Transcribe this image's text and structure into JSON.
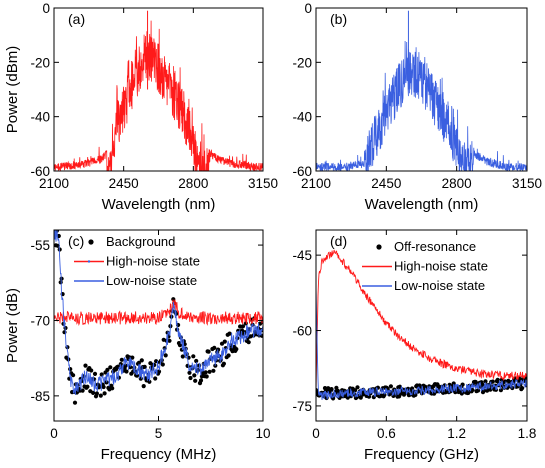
{
  "chart_data": [
    {
      "panel": "(a)",
      "type": "line",
      "xlabel": "Wavelength (nm)",
      "ylabel": "Power (dBm)",
      "xlim": [
        2100,
        3150
      ],
      "ylim": [
        -60,
        0
      ],
      "xticks": [
        "2100",
        "2450",
        "2800",
        "3150"
      ],
      "yticks": [
        "0",
        "-20",
        "-40",
        "-60"
      ],
      "series": [
        {
          "color": "#ff1a1a",
          "x": [
            2120,
            2250,
            2300,
            2340,
            2390,
            2400,
            2440,
            2480,
            2520,
            2560,
            2600,
            2640,
            2680,
            2720,
            2760,
            2800,
            2810,
            2850,
            2900,
            2950,
            3000,
            3050,
            3100,
            3140
          ],
          "y": [
            -57,
            -56,
            -55,
            -54,
            -50,
            -38,
            -30,
            -22,
            -15,
            -8,
            -10,
            -15,
            -20,
            -26,
            -32,
            -38,
            -45,
            -50,
            -53,
            -55,
            -56,
            -56,
            -57,
            -57
          ]
        }
      ]
    },
    {
      "panel": "(b)",
      "type": "line",
      "xlabel": "Wavelength (nm)",
      "ylabel": "",
      "xlim": [
        2100,
        3150
      ],
      "ylim": [
        -60,
        0
      ],
      "xticks": [
        "2100",
        "2450",
        "2800",
        "3150"
      ],
      "yticks": [
        "0",
        "-20",
        "-40",
        "-60"
      ],
      "series": [
        {
          "color": "#3a5fe0",
          "x": [
            2120,
            2250,
            2300,
            2340,
            2360,
            2400,
            2450,
            2500,
            2550,
            2600,
            2650,
            2700,
            2750,
            2780,
            2800,
            2830,
            2850,
            2900,
            2950,
            3000,
            3050,
            3100,
            3140
          ],
          "y": [
            -57,
            -57,
            -56,
            -56,
            -45,
            -38,
            -30,
            -22,
            -15,
            -15,
            -20,
            -27,
            -33,
            -38,
            -43,
            -47,
            -50,
            -53,
            -55,
            -56,
            -57,
            -57,
            -57
          ]
        }
      ]
    },
    {
      "panel": "(c)",
      "type": "line",
      "xlabel": "Frequency (MHz)",
      "ylabel": "Power (dB)",
      "xlim": [
        0,
        10
      ],
      "ylim": [
        -90,
        -52
      ],
      "xticks": [
        "0",
        "5",
        "10"
      ],
      "yticks": [
        "-55",
        "-70",
        "-85"
      ],
      "legend": [
        "Background",
        "High-noise state",
        "Low-noise state"
      ],
      "series": [
        {
          "name": "Background",
          "color": "#000000",
          "x": [
            0.2,
            0.4,
            0.6,
            0.8,
            1.0,
            1.5,
            2.0,
            2.5,
            3.0,
            3.5,
            4.0,
            4.5,
            5.0,
            5.5,
            5.75,
            6.0,
            6.5,
            7.0,
            7.5,
            8.0,
            8.5,
            9.0,
            9.5,
            10.0
          ],
          "y": [
            -53,
            -66,
            -76,
            -82,
            -84,
            -81,
            -83,
            -82,
            -81,
            -78,
            -80,
            -81,
            -79,
            -73,
            -67,
            -73,
            -79,
            -80,
            -78,
            -77,
            -74,
            -73,
            -72,
            -72
          ]
        },
        {
          "name": "High-noise state",
          "color": "#ff1a1a",
          "x": [
            0.2,
            0.5,
            1.0,
            2.0,
            3.0,
            4.0,
            5.0,
            5.5,
            5.75,
            6.0,
            7.0,
            8.0,
            9.0,
            10.0
          ],
          "y": [
            -69.5,
            -69.5,
            -69.5,
            -69.5,
            -69.5,
            -69.5,
            -69.5,
            -68.5,
            -66.5,
            -68.5,
            -69.5,
            -69.5,
            -69.5,
            -69.5
          ]
        },
        {
          "name": "Low-noise state",
          "color": "#3a5fe0",
          "x": [
            0.2,
            0.4,
            0.6,
            0.8,
            1.0,
            1.5,
            2.0,
            2.5,
            3.0,
            3.5,
            4.0,
            4.5,
            5.0,
            5.5,
            5.75,
            6.0,
            6.5,
            7.0,
            7.5,
            8.0,
            8.5,
            9.0,
            9.5,
            10.0
          ],
          "y": [
            -53,
            -66,
            -76,
            -82,
            -84,
            -81,
            -83,
            -82,
            -81,
            -78,
            -80,
            -81,
            -79,
            -73,
            -67,
            -73,
            -79,
            -80,
            -78,
            -77,
            -74,
            -73,
            -72,
            -72
          ]
        }
      ]
    },
    {
      "panel": "(d)",
      "type": "line",
      "xlabel": "Frequency (GHz)",
      "ylabel": "",
      "xlim": [
        0,
        1.8
      ],
      "ylim": [
        -78,
        -40
      ],
      "xticks": [
        "0",
        "0.6",
        "1.2",
        "1.8"
      ],
      "yticks": [
        "-45",
        "-60",
        "-75"
      ],
      "legend": [
        "Off-resonance",
        "High-noise state",
        "Low-noise state"
      ],
      "series": [
        {
          "name": "Off-resonance",
          "color": "#000000",
          "x": [
            0.02,
            0.2,
            0.4,
            0.6,
            0.8,
            1.0,
            1.2,
            1.4,
            1.6,
            1.8
          ],
          "y": [
            -72.5,
            -72.5,
            -72.3,
            -72.2,
            -72,
            -71.8,
            -71.5,
            -71.2,
            -70.8,
            -70.5
          ]
        },
        {
          "name": "High-noise state",
          "color": "#ff1a1a",
          "x": [
            0.0,
            0.02,
            0.05,
            0.1,
            0.15,
            0.2,
            0.3,
            0.4,
            0.5,
            0.6,
            0.7,
            0.8,
            0.9,
            1.0,
            1.2,
            1.4,
            1.6,
            1.8
          ],
          "y": [
            -72,
            -50,
            -46.5,
            -45,
            -44.5,
            -45.5,
            -48.5,
            -52,
            -55.5,
            -58.5,
            -61,
            -63,
            -64.5,
            -66,
            -67.5,
            -68.5,
            -69,
            -69
          ]
        },
        {
          "name": "Low-noise state",
          "color": "#3a5fe0",
          "x": [
            0.0,
            0.02,
            0.2,
            0.4,
            0.6,
            0.8,
            1.0,
            1.2,
            1.4,
            1.6,
            1.8
          ],
          "y": [
            -52,
            -73,
            -72.5,
            -72.3,
            -72.2,
            -72,
            -71.8,
            -71.5,
            -71.2,
            -70.8,
            -70.5
          ]
        }
      ]
    }
  ]
}
